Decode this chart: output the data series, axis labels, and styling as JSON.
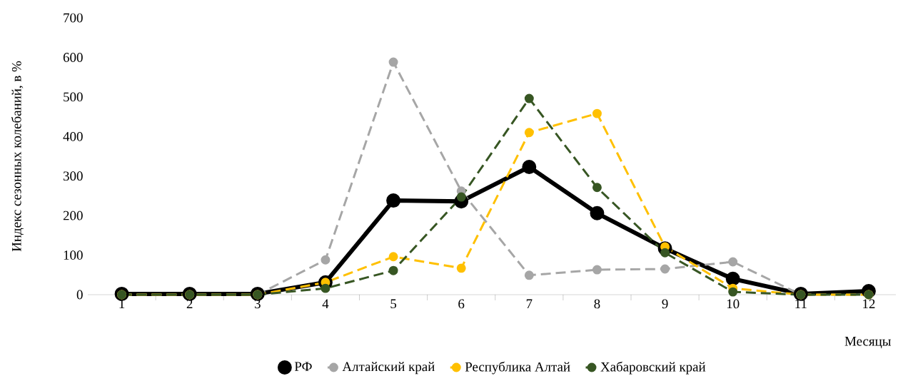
{
  "chart_data": {
    "type": "line",
    "xlabel": "Месяцы",
    "ylabel": "Индекс сезонных колебаний, в %",
    "categories": [
      "1",
      "2",
      "3",
      "4",
      "5",
      "6",
      "7",
      "8",
      "9",
      "10",
      "11",
      "12"
    ],
    "series": [
      {
        "name": "РФ",
        "color": "#000000",
        "line_style": "solid",
        "values": [
          2,
          2,
          2,
          31,
          238,
          236,
          323,
          206,
          117,
          40,
          2,
          9
        ]
      },
      {
        "name": "Алтайский край",
        "color": "#a6a6a6",
        "line_style": "dashed",
        "values": [
          0,
          0,
          0,
          88,
          588,
          262,
          49,
          63,
          65,
          83,
          0,
          0
        ]
      },
      {
        "name": "Республика Алтай",
        "color": "#ffc000",
        "line_style": "dashed",
        "values": [
          0,
          0,
          0,
          31,
          96,
          67,
          410,
          458,
          121,
          16,
          0,
          0
        ]
      },
      {
        "name": "Хабаровский край",
        "color": "#375623",
        "line_style": "dashed",
        "values": [
          0,
          0,
          0,
          16,
          61,
          247,
          496,
          271,
          106,
          7,
          0,
          0
        ]
      }
    ],
    "ylim": [
      0,
      700
    ],
    "yticks": [
      0,
      100,
      200,
      300,
      400,
      500,
      600,
      700
    ],
    "marker": "circle",
    "grid": false,
    "legend": "bottom"
  }
}
